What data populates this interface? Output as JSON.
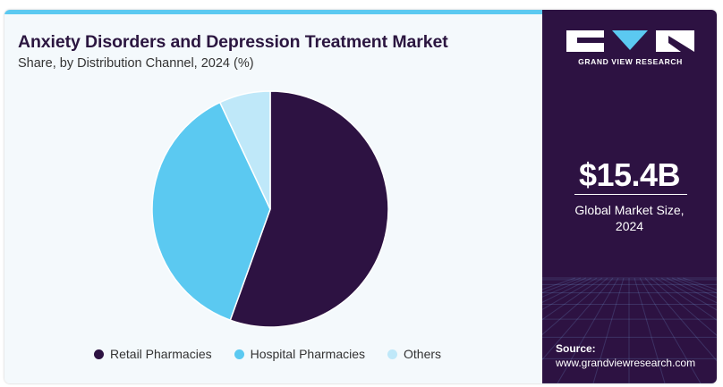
{
  "header": {
    "title": "Anxiety Disorders and Depression Treatment Market",
    "subtitle": "Share, by Distribution Channel, 2024 (%)"
  },
  "colors": {
    "accent_bar": "#5bc9f1",
    "panel": "#2d1242",
    "background": "#f4f9fc"
  },
  "chart_data": {
    "type": "pie",
    "title": "Anxiety Disorders and Depression Treatment Market",
    "subtitle": "Share, by Distribution Channel, 2024 (%)",
    "slices": [
      {
        "label": "Retail Pharmacies",
        "value": 55.5,
        "color": "#2d1242"
      },
      {
        "label": "Hospital Pharmacies",
        "value": 37.5,
        "color": "#5bc9f1"
      },
      {
        "label": "Others",
        "value": 7.0,
        "color": "#bfe8f9"
      }
    ],
    "start_angle_deg": 0,
    "direction": "clockwise",
    "legend_position": "bottom"
  },
  "legend": {
    "items": [
      {
        "label": "Retail Pharmacies",
        "color": "#2d1242"
      },
      {
        "label": "Hospital Pharmacies",
        "color": "#5bc9f1"
      },
      {
        "label": "Others",
        "color": "#bfe8f9"
      }
    ]
  },
  "side_panel": {
    "logo_text": "GRAND VIEW RESEARCH",
    "market_size_value": "$15.4B",
    "market_size_caption": "Global Market Size,\n2024",
    "source_label": "Source:",
    "source_url": "www.grandviewresearch.com"
  }
}
